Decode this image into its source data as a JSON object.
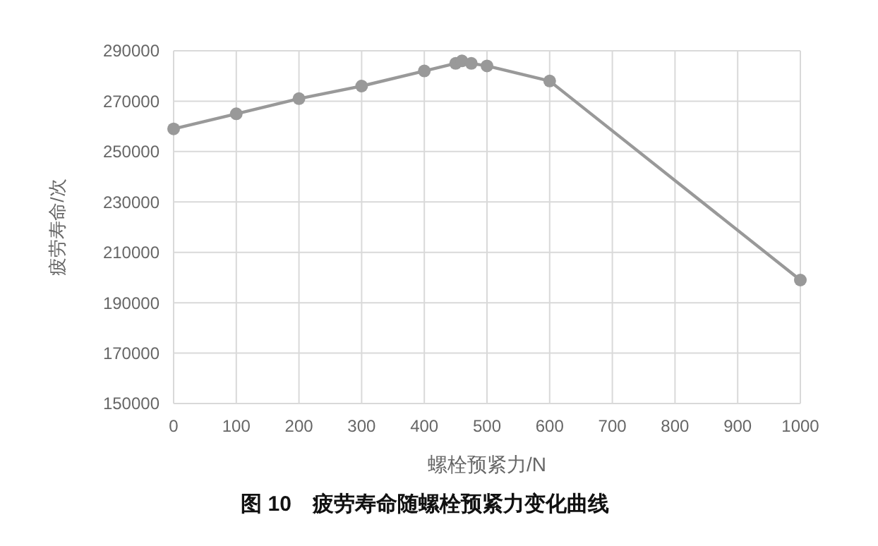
{
  "chart_data": {
    "type": "line",
    "title": "图 10　疲劳寿命随螺栓预紧力变化曲线",
    "xlabel": "螺栓预紧力/N",
    "ylabel": "疲劳寿命/次",
    "x": [
      0,
      100,
      200,
      300,
      400,
      450,
      460,
      475,
      500,
      600,
      1000
    ],
    "series": [
      {
        "color": "#999999",
        "values": [
          259000,
          265000,
          271000,
          276000,
          282000,
          285000,
          286000,
          285000,
          284000,
          278000,
          199000
        ]
      }
    ],
    "xlim": [
      0,
      1000
    ],
    "xticks": [
      0,
      100,
      200,
      300,
      400,
      500,
      600,
      700,
      800,
      900,
      1000
    ],
    "ylim": [
      150000,
      290000
    ],
    "yticks": [
      150000,
      170000,
      190000,
      210000,
      230000,
      250000,
      270000,
      290000
    ],
    "grid": true,
    "marker": "circle",
    "line_style": "solid"
  }
}
